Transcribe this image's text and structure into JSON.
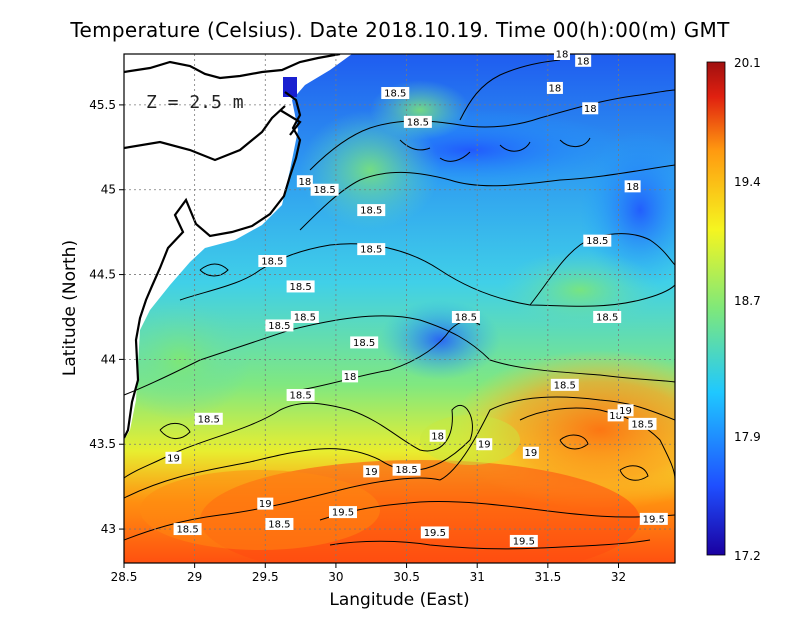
{
  "title": "Temperature (Celsius). Date 2018.10.19. Time 00(h):00(m)  GMT",
  "depth_label": "Z  =  2.5  m",
  "xlabel": "Langitude (East)",
  "ylabel": "Latitude (North)",
  "chart_data": {
    "type": "heatmap",
    "variable": "Temperature (Celsius)",
    "depth": "2.5 m",
    "xlim": [
      28.5,
      32.4
    ],
    "ylim": [
      42.8,
      45.8
    ],
    "x_ticks": [
      "28.5",
      "29",
      "29.5",
      "30",
      "30.5",
      "31",
      "31.5",
      "32"
    ],
    "y_ticks": [
      "43",
      "43.5",
      "44",
      "44.5",
      "45",
      "45.5"
    ],
    "colorbar": {
      "min": 17.2,
      "max": 20.1,
      "tick_labels": [
        "17.2",
        "17.9",
        "18.7",
        "19.4",
        "20.1"
      ],
      "colors": [
        "#1a00a0",
        "#1f4fff",
        "#1fc8ff",
        "#7fe87a",
        "#f5f520",
        "#ff9a10",
        "#e02010",
        "#a01010"
      ]
    },
    "grid": true,
    "contour_levels": [
      18,
      18.5,
      19,
      19.5
    ],
    "contour_labels": [
      {
        "text": "18",
        "lon": 30.72,
        "lat": 43.55
      },
      {
        "text": "18",
        "lon": 30.1,
        "lat": 43.9
      },
      {
        "text": "18",
        "lon": 29.78,
        "lat": 45.05
      },
      {
        "text": "18",
        "lon": 31.55,
        "lat": 45.6
      },
      {
        "text": "18",
        "lon": 31.75,
        "lat": 45.76
      },
      {
        "text": "18",
        "lon": 31.6,
        "lat": 45.8
      },
      {
        "text": "18",
        "lon": 31.8,
        "lat": 45.48
      },
      {
        "text": "18",
        "lon": 32.1,
        "lat": 45.02
      },
      {
        "text": "18",
        "lon": 31.98,
        "lat": 43.67
      },
      {
        "text": "18.5",
        "lon": 30.42,
        "lat": 45.57
      },
      {
        "text": "18.5",
        "lon": 30.58,
        "lat": 45.4
      },
      {
        "text": "18.5",
        "lon": 29.92,
        "lat": 45.0
      },
      {
        "text": "18.5",
        "lon": 30.25,
        "lat": 44.88
      },
      {
        "text": "18.5",
        "lon": 30.25,
        "lat": 44.65
      },
      {
        "text": "18.5",
        "lon": 29.6,
        "lat": 44.2
      },
      {
        "text": "18.5",
        "lon": 29.55,
        "lat": 44.58
      },
      {
        "text": "18.5",
        "lon": 29.75,
        "lat": 44.43
      },
      {
        "text": "18.5",
        "lon": 29.78,
        "lat": 44.25
      },
      {
        "text": "18.5",
        "lon": 30.2,
        "lat": 44.1
      },
      {
        "text": "18.5",
        "lon": 30.92,
        "lat": 44.25
      },
      {
        "text": "18.5",
        "lon": 31.85,
        "lat": 44.7
      },
      {
        "text": "18.5",
        "lon": 31.92,
        "lat": 44.25
      },
      {
        "text": "18.5",
        "lon": 31.62,
        "lat": 43.85
      },
      {
        "text": "18.5",
        "lon": 32.17,
        "lat": 43.62
      },
      {
        "text": "18.5",
        "lon": 29.75,
        "lat": 43.79
      },
      {
        "text": "18.5",
        "lon": 29.1,
        "lat": 43.65
      },
      {
        "text": "18.5",
        "lon": 30.5,
        "lat": 43.35
      },
      {
        "text": "18.5",
        "lon": 28.95,
        "lat": 43.0
      },
      {
        "text": "18.5",
        "lon": 29.6,
        "lat": 43.03
      },
      {
        "text": "19",
        "lon": 31.05,
        "lat": 43.5
      },
      {
        "text": "19",
        "lon": 30.25,
        "lat": 43.34
      },
      {
        "text": "19",
        "lon": 29.5,
        "lat": 43.15
      },
      {
        "text": "19",
        "lon": 28.85,
        "lat": 43.42
      },
      {
        "text": "19",
        "lon": 31.38,
        "lat": 43.45
      },
      {
        "text": "19",
        "lon": 32.05,
        "lat": 43.7
      },
      {
        "text": "19.5",
        "lon": 30.05,
        "lat": 43.1
      },
      {
        "text": "19.5",
        "lon": 30.7,
        "lat": 42.98
      },
      {
        "text": "19.5",
        "lon": 31.33,
        "lat": 42.93
      },
      {
        "text": "19.5",
        "lon": 32.25,
        "lat": 43.06
      }
    ]
  }
}
